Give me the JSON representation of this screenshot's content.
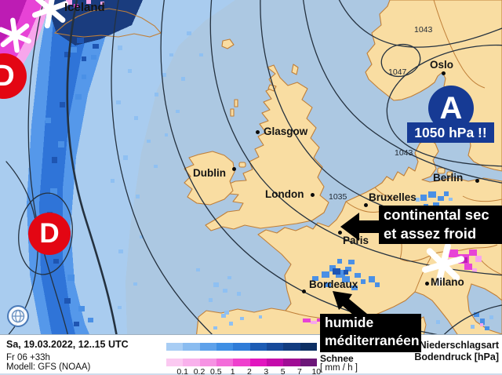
{
  "map": {
    "cities": {
      "iceland": "Iceland",
      "oslo": "Oslo",
      "glasgow": "Glasgow",
      "dublin": "Dublin",
      "london": "London",
      "berlin": "Berlin",
      "bruxelles": "Bruxelles",
      "paris": "Paris",
      "bordeaux": "Bordeaux",
      "milano": "Milano"
    },
    "isobar_labels": {
      "top_1043": "1043",
      "oslo_1047": "1047",
      "mid_1043": "1043",
      "west_1035": "1035"
    },
    "pressure": {
      "high_letter": "A",
      "high_value": "1050 hPa !!",
      "high_color": "#163a94",
      "low_letter": "D",
      "low_color": "#e30613"
    },
    "annotations": {
      "continental_line1": "continental sec",
      "continental_line2": "et assez froid",
      "humide_line1": "humide",
      "humide_line2": "méditerranéen"
    }
  },
  "footer": {
    "date_line": "Sa, 19.03.2022, 12..15 UTC",
    "run_line": "Fr 06 +33h",
    "model_line": "Modell: GFS (NOAA)",
    "precip_type_label": "Niederschlagsart",
    "pressure_label": "Bodendruck [hPa]",
    "snow_label": "Schnee",
    "unit_label": "[ mm / h ]",
    "legend_ticks": [
      "0.1",
      "0.2",
      "0.5",
      "1",
      "2",
      "3",
      "5",
      "7",
      "10"
    ],
    "rain_colors": [
      "#a8cdf4",
      "#8abcf0",
      "#5ea1ea",
      "#3f8fe4",
      "#2f7cd8",
      "#1d5cb4",
      "#174a9a",
      "#123c80",
      "#0d2f63"
    ],
    "snow_colors": [
      "#fbc9f1",
      "#f9b1ec",
      "#f693e3",
      "#f36cd9",
      "#ef40cd",
      "#e215bf",
      "#c50aab",
      "#a00d94",
      "#6c1678"
    ]
  },
  "colors": {
    "sea": "#acc8e2",
    "land": "#f9dda2",
    "coastline": "#c07f38",
    "isobar": "#24313f",
    "low_red": "#e30613",
    "high_navy": "#163a94"
  }
}
